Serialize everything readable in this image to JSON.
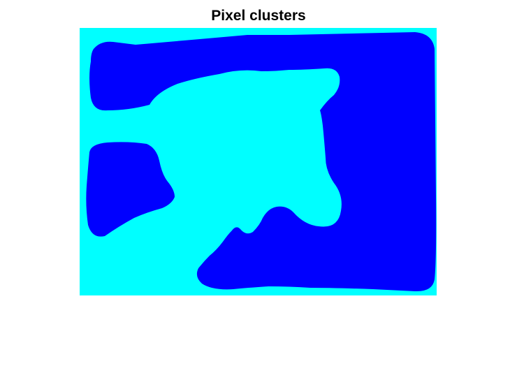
{
  "figure": {
    "title": "Pixel clusters"
  },
  "image": {
    "description_icon": "cluster-map-image",
    "colors": {
      "cluster_1": "#00FFFF",
      "cluster_2": "#0000FF"
    }
  }
}
